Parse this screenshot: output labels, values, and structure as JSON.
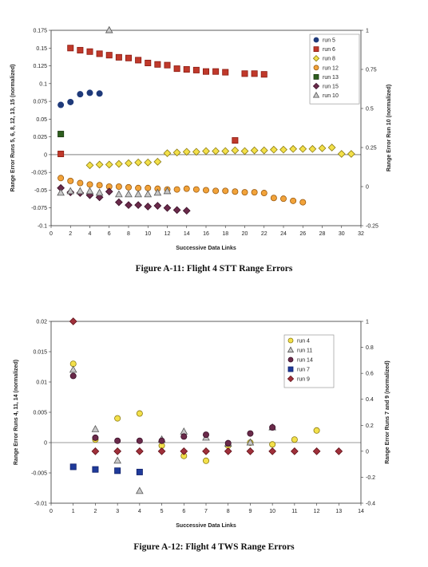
{
  "chart_data": [
    {
      "type": "scatter",
      "caption": "Figure A-11:  Flight 4 STT Range Errors",
      "xlabel": "Successive Data Links",
      "ylabel": "Range Error Runs 5, 6, 8, 12, 13, 15 (normalized)",
      "y2label": "Range Error Run 10 (normalized)",
      "xlim": [
        0,
        32
      ],
      "ylim": [
        -0.1,
        0.175
      ],
      "y2lim": [
        -0.25,
        1
      ],
      "xticks": [
        "0",
        "2",
        "4",
        "6",
        "8",
        "10",
        "12",
        "14",
        "16",
        "18",
        "20",
        "22",
        "24",
        "26",
        "28",
        "30",
        "32"
      ],
      "yticks": [
        "-0.1",
        "-0.075",
        "-0.05",
        "-0.025",
        "0",
        "0.025",
        "0.05",
        "0.075",
        "0.1",
        "0.125",
        "0.15",
        "0.175"
      ],
      "y2ticks": [
        "-0.25",
        "0",
        "0.25",
        "0.5",
        "0.75",
        "1"
      ],
      "legend_position": "top-right",
      "series": [
        {
          "name": "run 5",
          "marker": "circle",
          "fill": "#1f3a7a",
          "stroke": "#1f3a7a",
          "axis": "left",
          "x": [
            1,
            2,
            3,
            4,
            5
          ],
          "y": [
            0.07,
            0.074,
            0.085,
            0.087,
            0.086
          ]
        },
        {
          "name": "run 6",
          "marker": "square",
          "fill": "#c0392b",
          "stroke": "#8b1a10",
          "axis": "left",
          "x": [
            1,
            2,
            3,
            4,
            5,
            6,
            7,
            8,
            9,
            10,
            11,
            12,
            13,
            14,
            15,
            16,
            17,
            18,
            19,
            20,
            21,
            22
          ],
          "y": [
            0.001,
            0.15,
            0.147,
            0.145,
            0.142,
            0.14,
            0.137,
            0.136,
            0.133,
            0.129,
            0.127,
            0.126,
            0.121,
            0.12,
            0.119,
            0.117,
            0.117,
            0.116,
            0.02,
            0.114,
            0.114,
            0.113
          ]
        },
        {
          "name": "run 8",
          "marker": "diamond",
          "fill": "#f3e04a",
          "stroke": "#8a7a10",
          "axis": "left",
          "x": [
            4,
            5,
            6,
            7,
            8,
            9,
            10,
            11,
            12,
            13,
            14,
            15,
            16,
            17,
            18,
            19,
            20,
            21,
            22,
            23,
            24,
            25,
            26,
            27,
            28,
            29,
            30,
            31
          ],
          "y": [
            -0.015,
            -0.014,
            -0.014,
            -0.013,
            -0.012,
            -0.011,
            -0.011,
            -0.01,
            0.002,
            0.003,
            0.004,
            0.004,
            0.005,
            0.005,
            0.005,
            0.006,
            0.005,
            0.006,
            0.006,
            0.007,
            0.007,
            0.008,
            0.008,
            0.008,
            0.009,
            0.01,
            0.001,
            0.001
          ]
        },
        {
          "name": "run 12",
          "marker": "circle",
          "fill": "#f2a33a",
          "stroke": "#9a5a10",
          "axis": "left",
          "x": [
            1,
            2,
            3,
            4,
            5,
            6,
            7,
            8,
            9,
            10,
            11,
            12,
            13,
            14,
            15,
            16,
            17,
            18,
            19,
            20,
            21,
            22,
            23,
            24,
            25,
            26
          ],
          "y": [
            -0.033,
            -0.037,
            -0.04,
            -0.042,
            -0.043,
            -0.045,
            -0.045,
            -0.046,
            -0.047,
            -0.047,
            -0.048,
            -0.049,
            -0.049,
            -0.048,
            -0.049,
            -0.05,
            -0.051,
            -0.051,
            -0.052,
            -0.053,
            -0.053,
            -0.054,
            -0.061,
            -0.062,
            -0.065,
            -0.067
          ]
        },
        {
          "name": "run 13",
          "marker": "square",
          "fill": "#2e5e1e",
          "stroke": "#1a3810",
          "axis": "left",
          "x": [
            1
          ],
          "y": [
            0.029
          ]
        },
        {
          "name": "run 15",
          "marker": "diamond",
          "fill": "#6a2a4a",
          "stroke": "#3a1028",
          "axis": "left",
          "x": [
            1,
            2,
            3,
            4,
            5,
            6,
            7,
            8,
            9,
            10,
            11,
            12,
            13,
            14
          ],
          "y": [
            -0.047,
            -0.053,
            -0.054,
            -0.057,
            -0.06,
            -0.052,
            -0.067,
            -0.071,
            -0.071,
            -0.073,
            -0.072,
            -0.075,
            -0.078,
            -0.079
          ]
        },
        {
          "name": "run 10",
          "marker": "triangle",
          "fill": "#c8c8c8",
          "stroke": "#555555",
          "axis": "right",
          "x": [
            1,
            2,
            3,
            4,
            5,
            6,
            7,
            8,
            9,
            10,
            11,
            12
          ],
          "y": [
            -0.04,
            -0.03,
            -0.03,
            -0.03,
            -0.04,
            1.0,
            -0.05,
            -0.05,
            -0.05,
            -0.05,
            -0.04,
            -0.03
          ]
        }
      ]
    },
    {
      "type": "scatter",
      "caption": "Figure A-12:  Flight 4 TWS Range Errors",
      "xlabel": "Successive Data Links",
      "ylabel": "Range Error Runs 4, 11, 14 (normalized)",
      "y2label": "Range Error Runs 7 and 9 (normalized)",
      "xlim": [
        0,
        14
      ],
      "ylim": [
        -0.01,
        0.02
      ],
      "y2lim": [
        -0.4,
        1
      ],
      "xticks": [
        "0",
        "1",
        "2",
        "3",
        "4",
        "5",
        "6",
        "7",
        "8",
        "9",
        "10",
        "11",
        "12",
        "13",
        "14"
      ],
      "yticks": [
        "-0.01",
        "-0.005",
        "0",
        "0.005",
        "0.01",
        "0.015",
        "0.02"
      ],
      "y2ticks": [
        "-0.4",
        "-0.2",
        "0",
        "0.2",
        "0.4",
        "0.6",
        "0.8",
        "1"
      ],
      "legend_position": "top-right",
      "series": [
        {
          "name": "run 4",
          "marker": "circle",
          "fill": "#f3e04a",
          "stroke": "#8a7a10",
          "axis": "left",
          "x": [
            1,
            2,
            3,
            4,
            5,
            6,
            7,
            8,
            9,
            10,
            11,
            12
          ],
          "y": [
            0.013,
            0.0005,
            0.004,
            0.0048,
            -0.0005,
            -0.0022,
            -0.003,
            -0.0005,
            0,
            -0.0003,
            0.0005,
            0.002
          ]
        },
        {
          "name": "run 11",
          "marker": "triangle",
          "fill": "#c8c8c8",
          "stroke": "#555555",
          "axis": "left",
          "x": [
            1,
            2,
            3,
            4,
            5,
            6,
            7,
            8,
            9,
            10
          ],
          "y": [
            0.012,
            0.0022,
            -0.003,
            -0.008,
            0.0005,
            0.0018,
            0.0008,
            -0.0002,
            0,
            0.0025
          ]
        },
        {
          "name": "run 14",
          "marker": "circle",
          "fill": "#6a2a4a",
          "stroke": "#3a1028",
          "axis": "left",
          "x": [
            1,
            2,
            3,
            4,
            5,
            6,
            7,
            8,
            9,
            10
          ],
          "y": [
            0.011,
            0.0008,
            0.0003,
            0.0003,
            0.0003,
            0.001,
            0.0013,
            -0.0001,
            0.0015,
            0.0025
          ]
        },
        {
          "name": "run 7",
          "marker": "square",
          "fill": "#1f3a9a",
          "stroke": "#10206a",
          "axis": "right",
          "x": [
            1,
            2,
            3,
            4
          ],
          "y": [
            -0.12,
            -0.14,
            -0.15,
            -0.16
          ]
        },
        {
          "name": "run 9",
          "marker": "diamond",
          "fill": "#a0303a",
          "stroke": "#601018",
          "axis": "right",
          "x": [
            1,
            2,
            3,
            4,
            5,
            6,
            7,
            8,
            9,
            10,
            11,
            12,
            13
          ],
          "y": [
            1.0,
            0.0,
            0.0,
            0.0,
            0.0,
            0.0,
            0.0,
            0.0,
            0.0,
            0.0,
            0.0,
            0.0,
            0.0
          ]
        }
      ]
    }
  ]
}
